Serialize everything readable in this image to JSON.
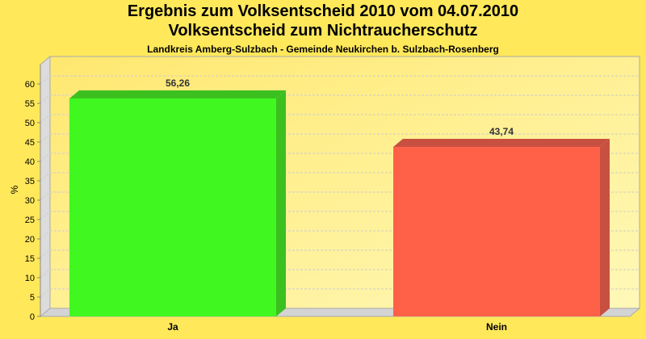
{
  "chart_data": {
    "type": "bar",
    "title": "Ergebnis zum Volksentscheid 2010 vom 04.07.2010",
    "title2": "Volksentscheid zum Nichtraucherschutz",
    "subtitle": "Landkreis Amberg-Sulzbach - Gemeinde Neukirchen b. Sulzbach-Rosenberg",
    "categories": [
      "Ja",
      "Nein"
    ],
    "values": [
      56.26,
      43.74
    ],
    "value_labels": [
      "56,26",
      "43,74"
    ],
    "colors": [
      "#40f820",
      "#ff6048"
    ],
    "side_colors": [
      "#3cc020",
      "#c85040"
    ],
    "ylabel": "%",
    "ylim": [
      0,
      65
    ],
    "yticks": [
      0,
      5,
      10,
      15,
      20,
      25,
      30,
      35,
      40,
      45,
      50,
      55,
      60
    ],
    "grid": true,
    "style": "3d"
  }
}
